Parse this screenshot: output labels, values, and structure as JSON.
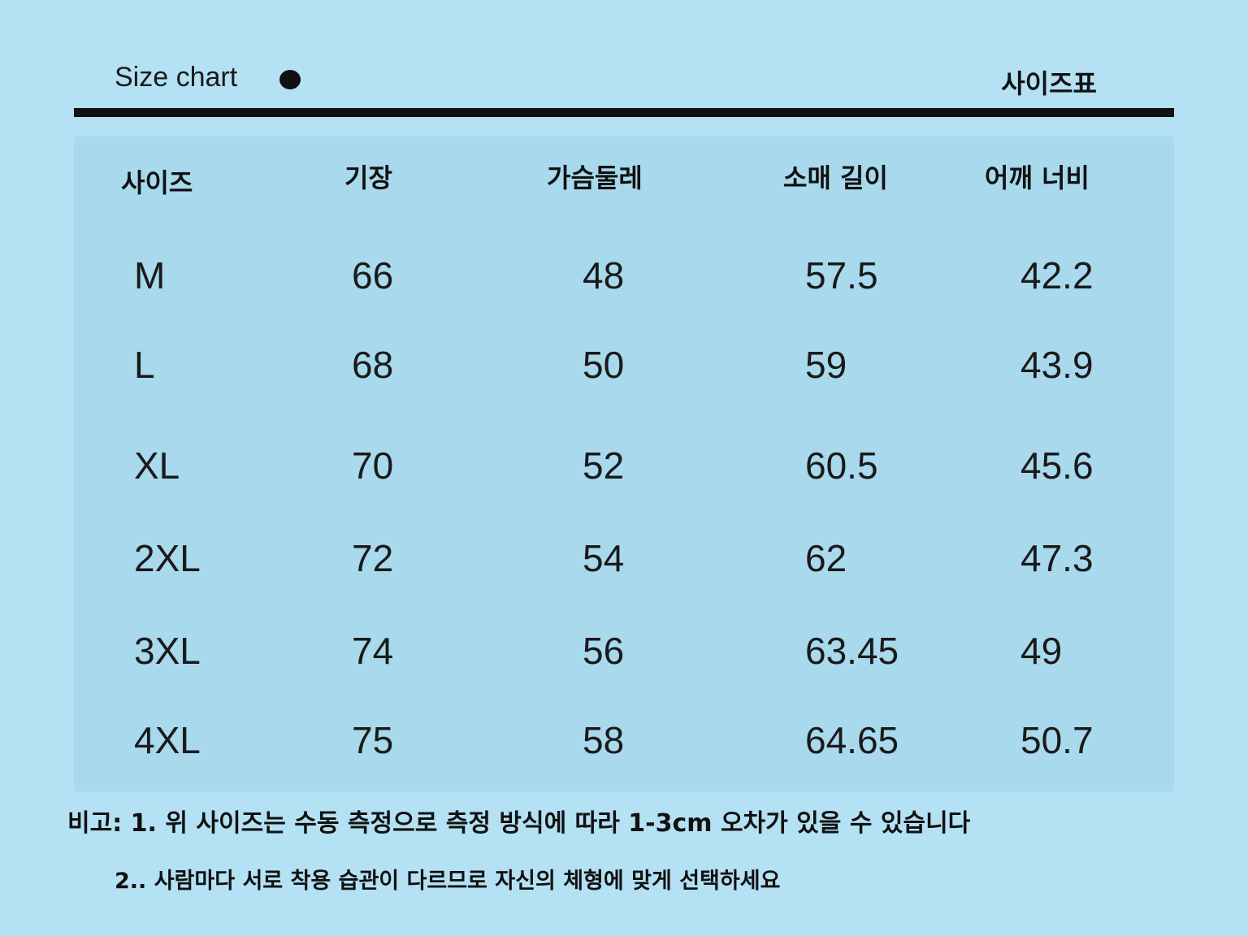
{
  "header": {
    "title_en": "Size chart",
    "title_ko": "사이즈표"
  },
  "table": {
    "columns": [
      "사이즈",
      "기장",
      "가슴둘레",
      "소매 길이",
      "어깨 너비"
    ],
    "rows": [
      [
        "M",
        "66",
        "48",
        "57.5",
        "42.2"
      ],
      [
        "L",
        "68",
        "50",
        "59",
        "43.9"
      ],
      [
        "XL",
        "70",
        "52",
        "60.5",
        "45.6"
      ],
      [
        "2XL",
        "72",
        "54",
        "62",
        "47.3"
      ],
      [
        "3XL",
        "74",
        "56",
        "63.45",
        "49"
      ],
      [
        "4XL",
        "75",
        "58",
        "64.65",
        "50.7"
      ]
    ]
  },
  "notes": [
    "비고: 1. 위 사이즈는 수동 측정으로 측정 방식에 따라 1-3cm 오차가 있을 수 있습니다",
    "2.. 사람마다 서로 착용 습관이 다르므로 자신의 체형에 맞게 선택하세요"
  ],
  "colors": {
    "background": "#b4e1f3",
    "table": "#a8d9ed",
    "rule": "#111111"
  }
}
